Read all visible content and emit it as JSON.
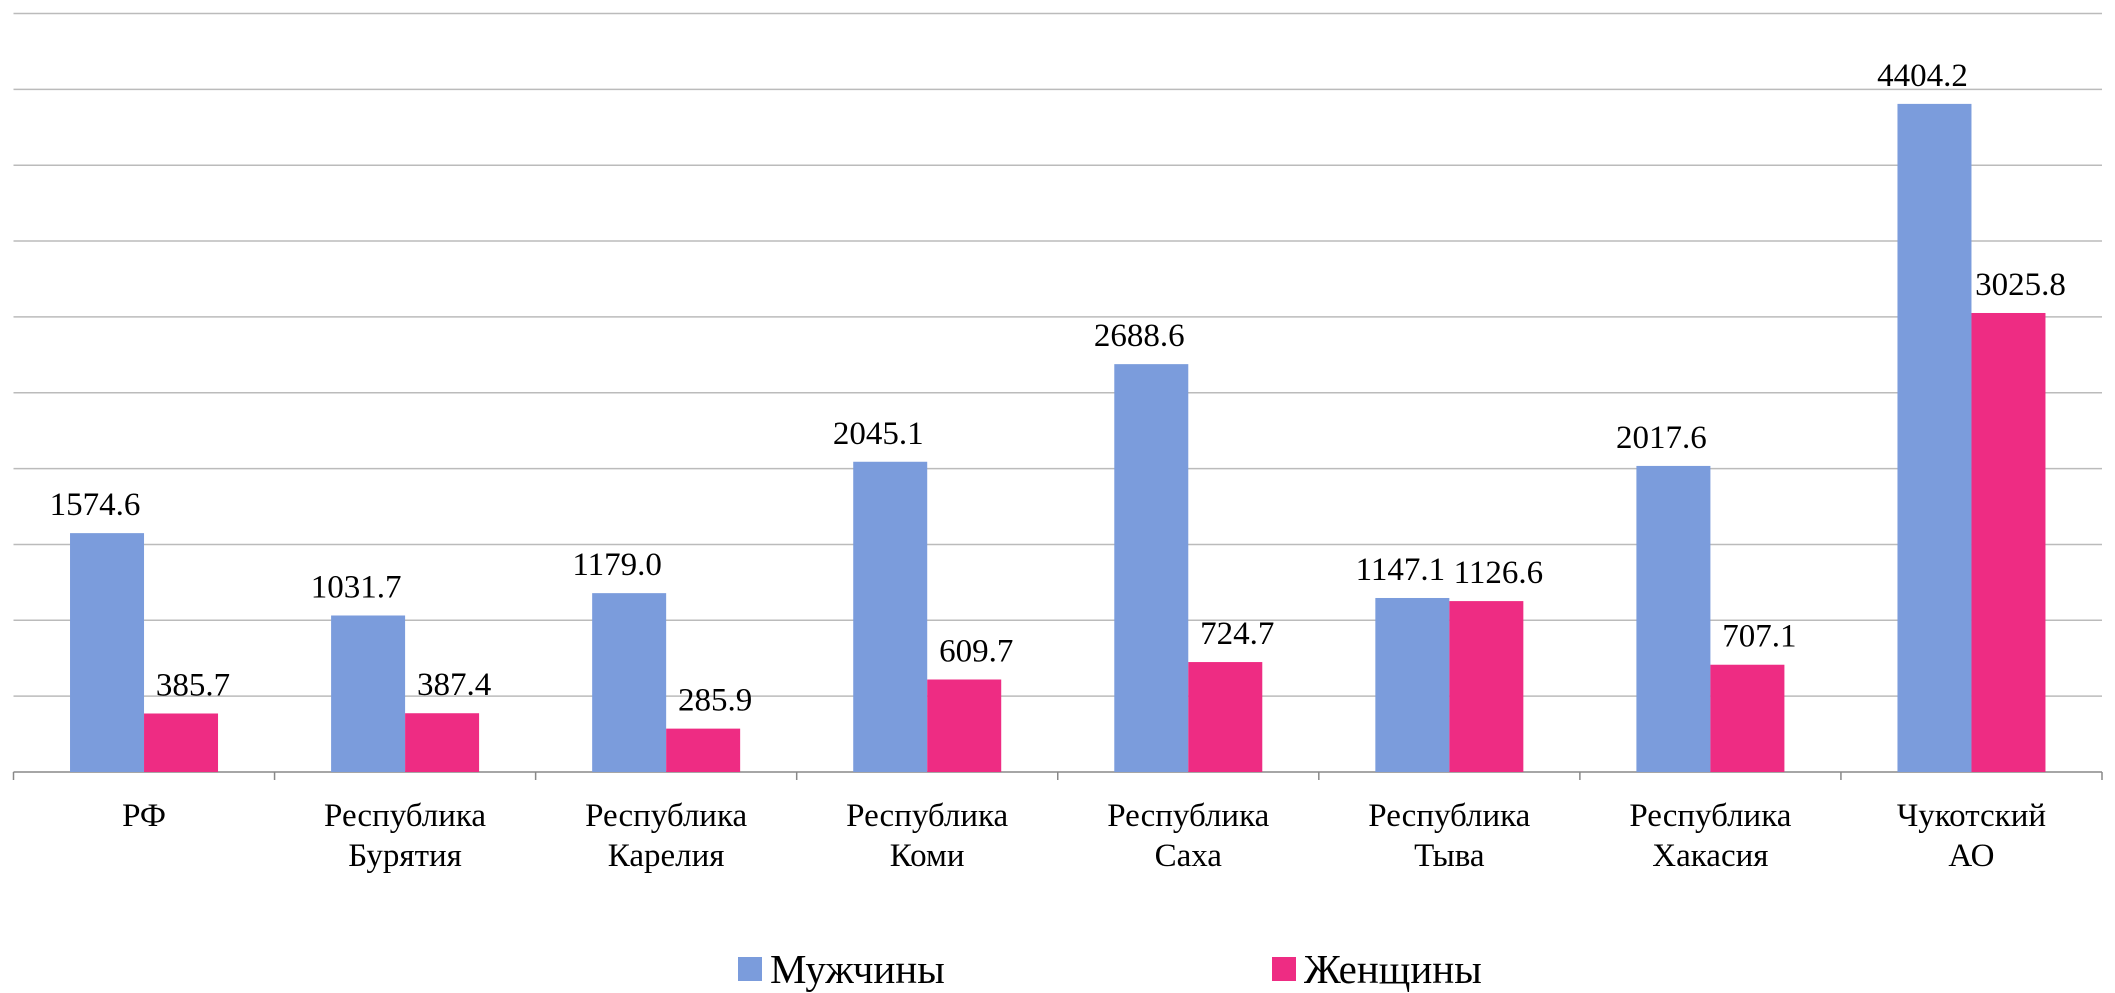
{
  "chart_data": {
    "type": "bar",
    "categories": [
      "РФ",
      "Республика\nБурятия",
      "Республика\nКарелия",
      "Республика\nКоми",
      "Республика\nСаха",
      "Республика\nТыва",
      "Республика\nХакасия",
      "Чукотский\nАО"
    ],
    "series": [
      {
        "name": "Мужчины",
        "color": "#7b9cdc",
        "values": [
          1574.6,
          1031.7,
          1179.0,
          2045.1,
          2688.6,
          1147.1,
          2017.6,
          4404.2
        ],
        "value_labels": [
          "1574.6",
          "1031.7",
          "1179.0",
          "2045.1",
          "2688.6",
          "1147.1",
          "2017.6",
          "4404.2"
        ]
      },
      {
        "name": "Женщины",
        "color": "#ee2c83",
        "values": [
          385.7,
          387.4,
          285.9,
          609.7,
          724.7,
          1126.6,
          707.1,
          3025.8
        ],
        "value_labels": [
          "385.7",
          "387.4",
          "285.9",
          "609.7",
          "724.7",
          "1126.6",
          "707.1",
          "3025.8"
        ]
      }
    ],
    "ylim": [
      0,
      5000
    ],
    "yticks": [
      0,
      500,
      1000,
      1500,
      2000,
      2500,
      3000,
      3500,
      4000,
      4500,
      5000
    ],
    "grid": true,
    "legend": "bottom"
  }
}
